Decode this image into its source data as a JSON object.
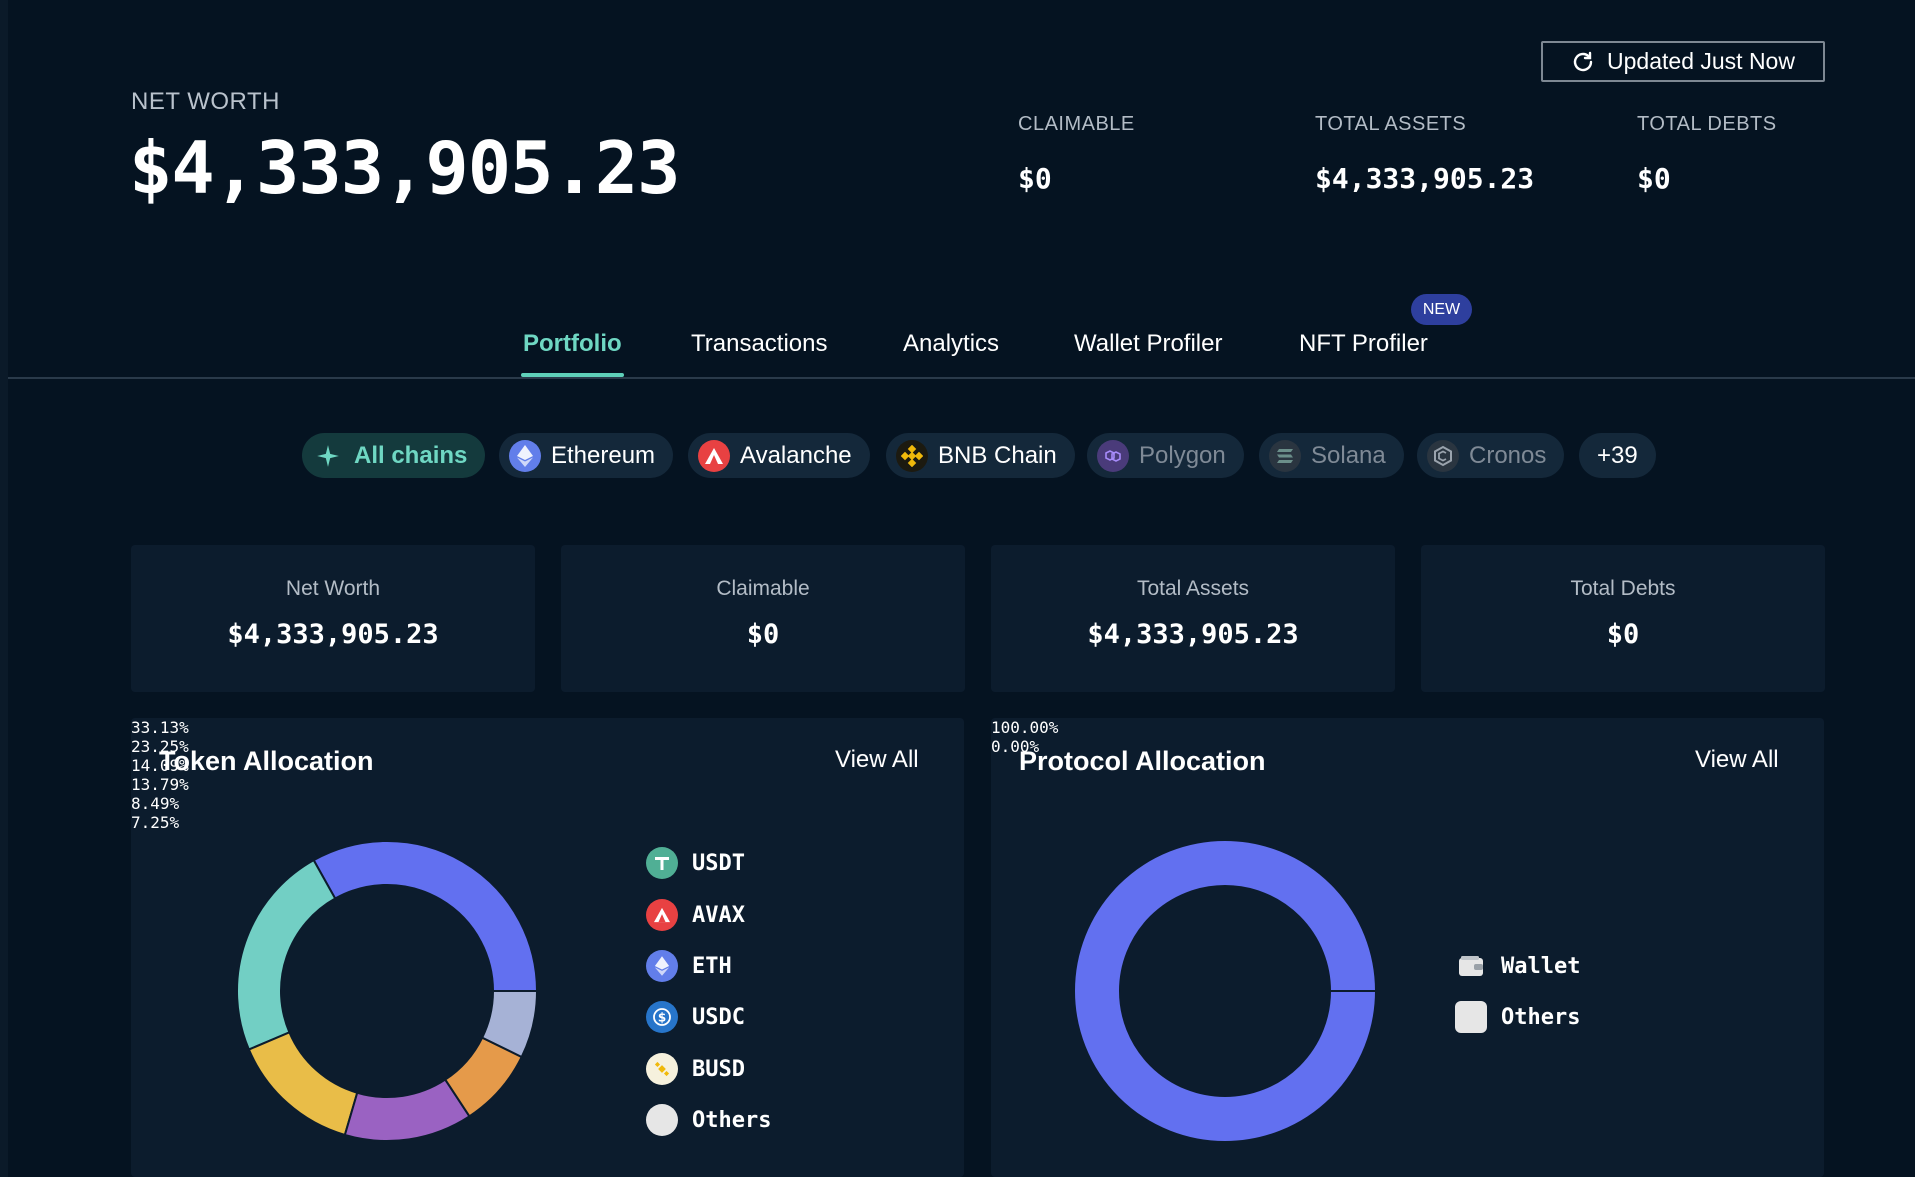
{
  "header": {
    "net_worth_label": "NET WORTH",
    "net_worth_value": "$4,333,905.23",
    "updated_label": "Updated Just Now",
    "stats": [
      {
        "label": "CLAIMABLE",
        "value": "$0"
      },
      {
        "label": "TOTAL ASSETS",
        "value": "$4,333,905.23"
      },
      {
        "label": "TOTAL DEBTS",
        "value": "$0"
      }
    ]
  },
  "tabs": [
    {
      "label": "Portfolio",
      "active": true
    },
    {
      "label": "Transactions"
    },
    {
      "label": "Analytics"
    },
    {
      "label": "Wallet Profiler"
    },
    {
      "label": "NFT Profiler",
      "badge": "NEW"
    }
  ],
  "chains": [
    {
      "label": "All chains",
      "icon": "sparkle-icon",
      "active": true
    },
    {
      "label": "Ethereum",
      "icon": "ethereum-icon"
    },
    {
      "label": "Avalanche",
      "icon": "avalanche-icon"
    },
    {
      "label": "BNB Chain",
      "icon": "bnb-icon"
    },
    {
      "label": "Polygon",
      "icon": "polygon-icon",
      "dim": true
    },
    {
      "label": "Solana",
      "icon": "solana-icon",
      "dim": true
    },
    {
      "label": "Cronos",
      "icon": "cronos-icon",
      "dim": true
    },
    {
      "label": "+39"
    }
  ],
  "summary_cards": [
    {
      "label": "Net Worth",
      "value": "$4,333,905.23"
    },
    {
      "label": "Claimable",
      "value": "$0"
    },
    {
      "label": "Total Assets",
      "value": "$4,333,905.23"
    },
    {
      "label": "Total Debts",
      "value": "$0"
    }
  ],
  "token_allocation": {
    "title": "Token Allocation",
    "view_all": "View All",
    "items": [
      {
        "name": "USDT",
        "pct": "33.13%",
        "value": 33.13,
        "color": "#6270f0",
        "icon": "usdt-icon",
        "icon_color": "#50af95"
      },
      {
        "name": "AVAX",
        "pct": "23.25%",
        "value": 23.25,
        "color": "#72cfc4",
        "icon": "avax-icon",
        "icon_color": "#e84142"
      },
      {
        "name": "ETH",
        "pct": "14.09%",
        "value": 14.09,
        "color": "#e9bd48",
        "icon": "eth-icon",
        "icon_color": "#627eea"
      },
      {
        "name": "USDC",
        "pct": "13.79%",
        "value": 13.79,
        "color": "#9a62c2",
        "icon": "usdc-icon",
        "icon_color": "#2775ca"
      },
      {
        "name": "BUSD",
        "pct": "8.49%",
        "value": 8.49,
        "color": "#e59a4a",
        "icon": "busd-icon",
        "icon_color": "#f0b90b"
      },
      {
        "name": "Others",
        "pct": "7.25%",
        "value": 7.25,
        "color": "#a6b2d6",
        "icon": "others-icon",
        "icon_color": "#e6e6e6"
      }
    ]
  },
  "protocol_allocation": {
    "title": "Protocol Allocation",
    "view_all": "View All",
    "items": [
      {
        "name": "Wallet",
        "pct": "100.00%",
        "value": 100.0,
        "color": "#6270f0",
        "icon": "wallet-icon"
      },
      {
        "name": "Others",
        "pct": "0.00%",
        "value": 0.0,
        "color": "#e6e6e6",
        "icon": "others-icon"
      }
    ]
  },
  "colors": {
    "background": "#051321",
    "card": "#0c1c2d",
    "accent": "#6fd7c3",
    "badge": "#2e3f9e"
  }
}
